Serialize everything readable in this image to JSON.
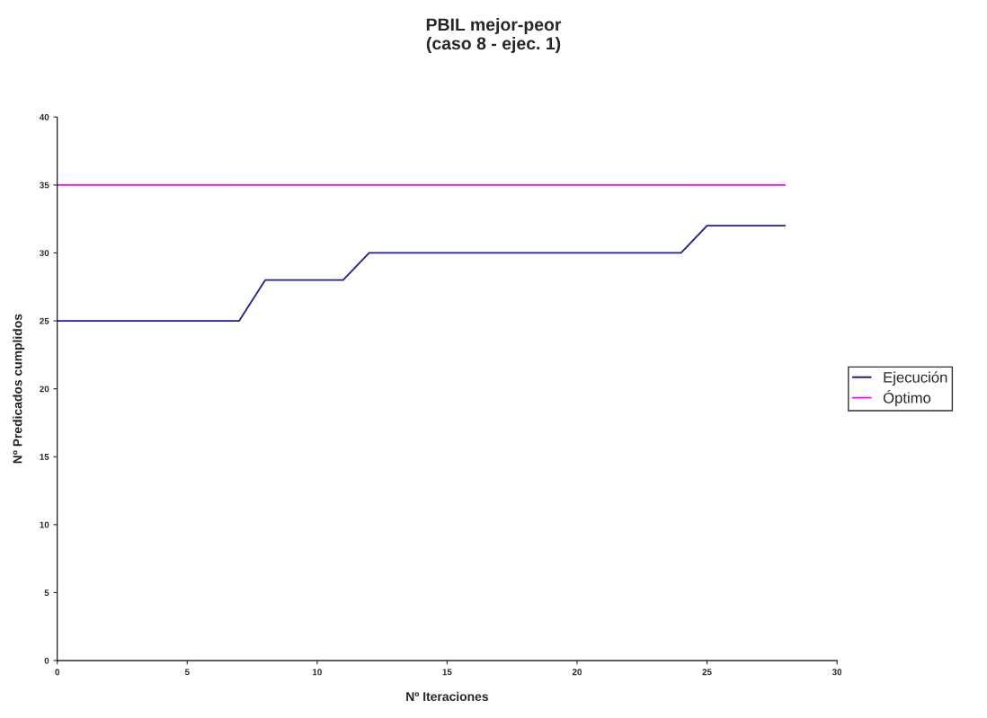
{
  "chart_data": {
    "type": "line",
    "title": "PBIL mejor-peor\n(caso 8 - ejec. 1)",
    "xlabel": "Nº Iteraciones",
    "ylabel": "Nº Predicados cumplidos",
    "series": [
      {
        "name": "Ejecución",
        "color": "#1f1f8f",
        "x": [
          0,
          7,
          8,
          11,
          12,
          24,
          25,
          28
        ],
        "values": [
          25,
          25,
          28,
          28,
          30,
          30,
          32,
          32
        ]
      },
      {
        "name": "Óptimo",
        "color": "#ff00ff",
        "x": [
          0,
          28
        ],
        "values": [
          35,
          35
        ]
      }
    ],
    "xlim": [
      0,
      30
    ],
    "xticks": [
      0,
      5,
      10,
      15,
      20,
      25,
      30
    ],
    "ylim": [
      0,
      40
    ],
    "yticks": [
      0,
      5,
      10,
      15,
      20,
      25,
      30,
      35,
      40
    ],
    "grid": false,
    "legend": "right",
    "marker": "none",
    "line_style": "solid"
  }
}
